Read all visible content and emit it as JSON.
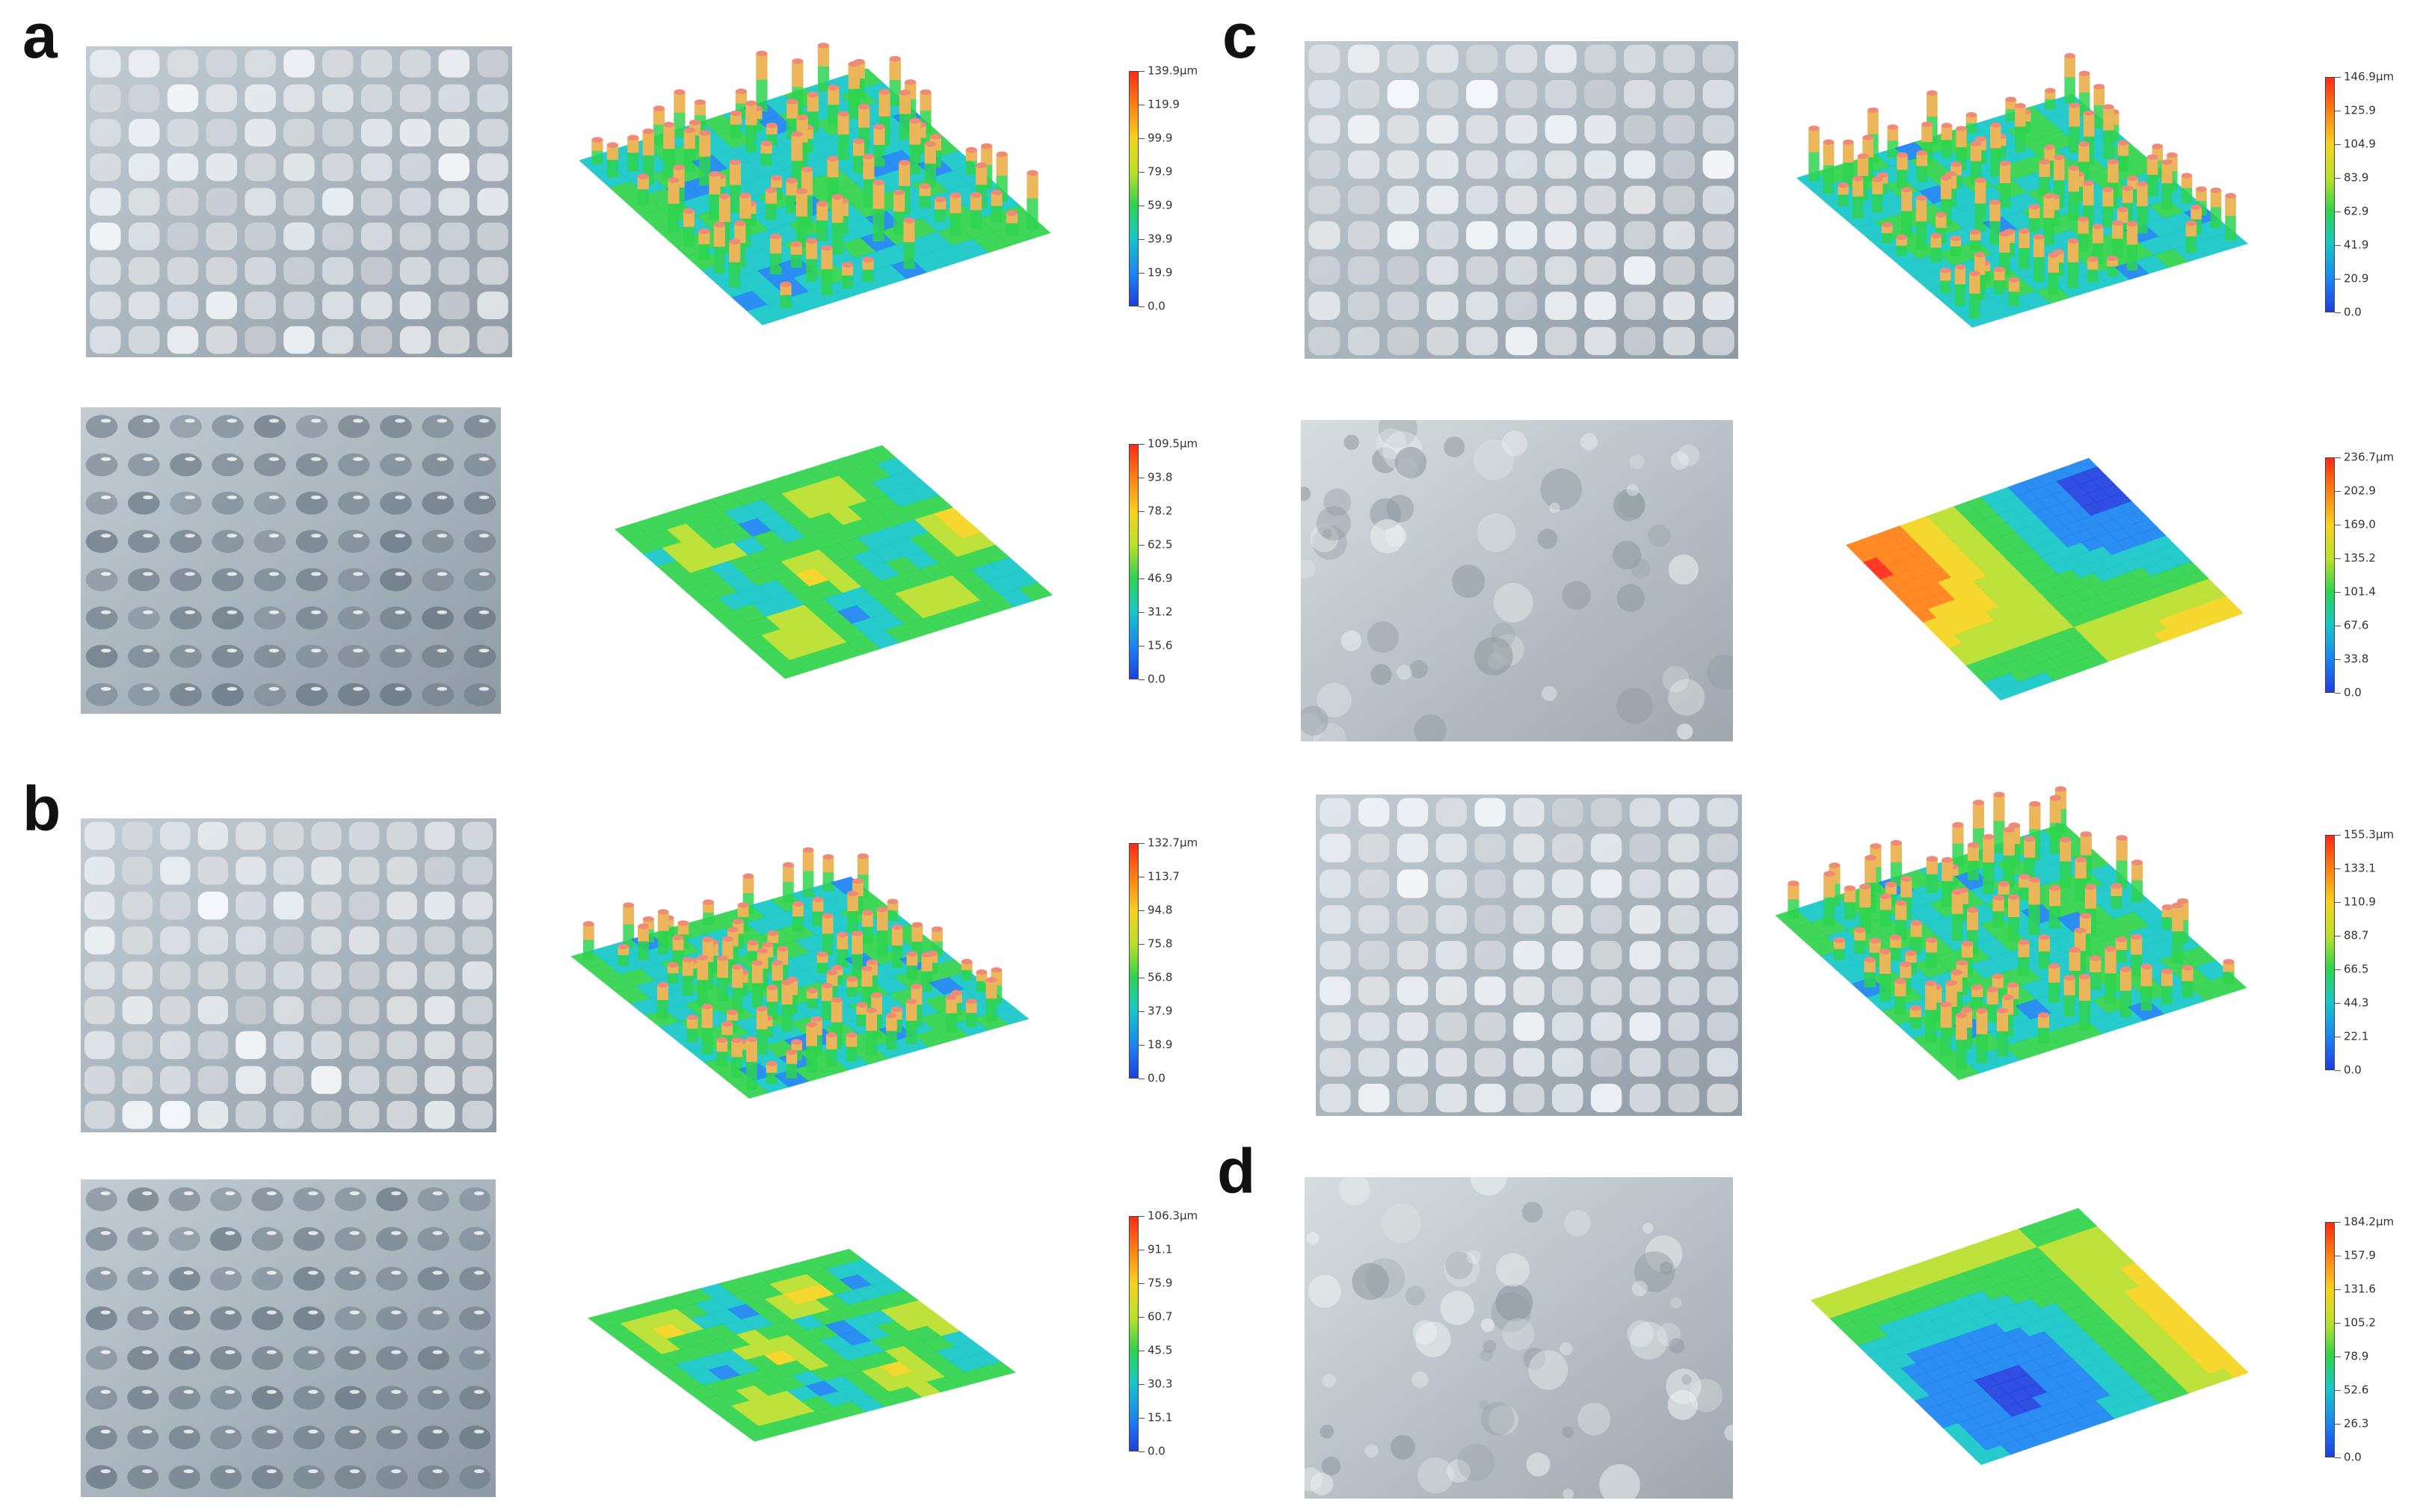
{
  "panels": {
    "a": {
      "letter": "a"
    },
    "b": {
      "letter": "b"
    },
    "c": {
      "letter": "c"
    },
    "d": {
      "letter": "d"
    }
  },
  "colorbars": {
    "a1": {
      "labels": [
        "139.9μm",
        "119.9",
        "99.9",
        "79.9",
        "59.9",
        "39.9",
        "19.9",
        "0.0"
      ]
    },
    "a2": {
      "labels": [
        "109.5μm",
        "93.8",
        "78.2",
        "62.5",
        "46.9",
        "31.2",
        "15.6",
        "0.0"
      ]
    },
    "b1": {
      "labels": [
        "132.7μm",
        "113.7",
        "94.8",
        "75.8",
        "56.8",
        "37.9",
        "18.9",
        "0.0"
      ]
    },
    "b2": {
      "labels": [
        "106.3μm",
        "91.1",
        "75.9",
        "60.7",
        "45.5",
        "30.3",
        "15.1",
        "0.0"
      ]
    },
    "c1": {
      "labels": [
        "146.9μm",
        "125.9",
        "104.9",
        "83.9",
        "62.9",
        "41.9",
        "20.9",
        "0.0"
      ]
    },
    "c2": {
      "labels": [
        "236.7μm",
        "202.9",
        "169.0",
        "135.2",
        "101.4",
        "67.6",
        "33.8",
        "0.0"
      ]
    },
    "c3": {
      "labels": [
        "155.3μm",
        "133.1",
        "110.9",
        "88.7",
        "66.5",
        "44.3",
        "22.1",
        "0.0"
      ]
    },
    "d1": {
      "labels": [
        "184.2μm",
        "157.9",
        "131.6",
        "105.2",
        "78.9",
        "52.6",
        "26.3",
        "0.0"
      ]
    }
  },
  "colors": {
    "scale_top": "#ff2a14",
    "scale_bottom": "#1f3fe0",
    "photo_tone": "#cfd8de"
  }
}
